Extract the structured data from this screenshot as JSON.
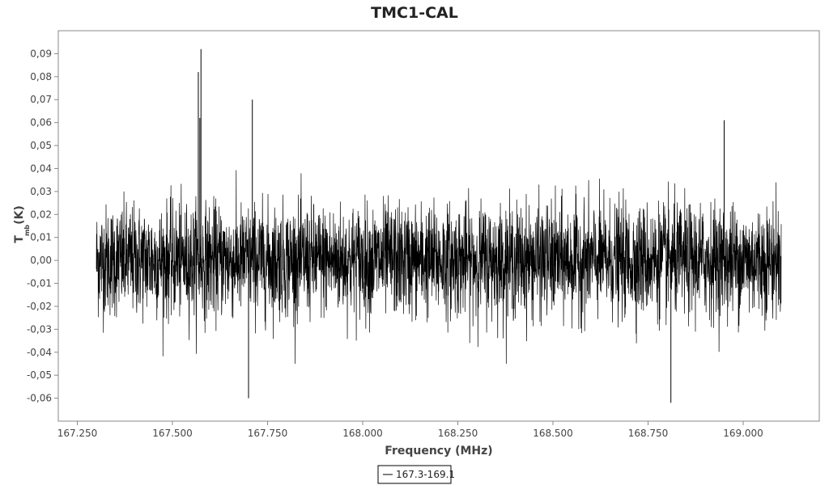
{
  "chart_data": {
    "type": "line",
    "title": "TMC1-CAL",
    "xlabel": "Frequency (MHz)",
    "ylabel_main": "T",
    "ylabel_sub": "mb",
    "ylabel_unit": "(K)",
    "x_range": [
      167.3,
      169.1
    ],
    "xlim": [
      167.2,
      169.2
    ],
    "ylim": [
      -0.07,
      0.1
    ],
    "x_ticks": [
      167.25,
      167.5,
      167.75,
      168.0,
      168.25,
      168.5,
      168.75,
      169.0
    ],
    "x_tick_labels": [
      "167.250",
      "167.500",
      "167.750",
      "168.000",
      "168.250",
      "168.500",
      "168.750",
      "169.000"
    ],
    "y_ticks": [
      0.09,
      0.08,
      0.07,
      0.06,
      0.05,
      0.04,
      0.03,
      0.02,
      0.01,
      0.0,
      -0.01,
      -0.02,
      -0.03,
      -0.04,
      -0.05,
      -0.06
    ],
    "y_tick_labels": [
      "0,09",
      "0,08",
      "0,07",
      "0,06",
      "0,05",
      "0,04",
      "0,03",
      "0,02",
      "0,01",
      "0,00",
      "-0,01",
      "-0,02",
      "-0,03",
      "-0,04",
      "-0,05",
      "-0,06"
    ],
    "noise_rms": 0.012,
    "noise_clip": [
      -0.045,
      0.048
    ],
    "peaks": [
      {
        "x": 167.568,
        "y": 0.082
      },
      {
        "x": 167.575,
        "y": 0.092
      },
      {
        "x": 167.572,
        "y": 0.062
      },
      {
        "x": 167.71,
        "y": 0.07
      },
      {
        "x": 168.95,
        "y": 0.061
      },
      {
        "x": 167.7,
        "y": -0.06
      },
      {
        "x": 168.81,
        "y": -0.062
      }
    ],
    "series": [
      {
        "name": "167.3-169.1",
        "color": "#000000"
      }
    ],
    "legend_position": "bottom-center",
    "grid": false
  }
}
